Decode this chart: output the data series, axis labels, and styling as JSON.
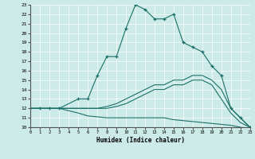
{
  "xlabel": "Humidex (Indice chaleur)",
  "bg_color": "#cceae7",
  "line_color": "#1a7068",
  "grid_color": "#ffffff",
  "xmin": 0,
  "xmax": 23,
  "ymin": 10,
  "ymax": 23,
  "curve1_x": [
    0,
    1,
    2,
    3,
    5,
    6,
    7,
    8,
    9,
    10,
    11,
    12,
    13,
    14,
    15,
    16,
    17,
    18,
    19,
    20,
    21,
    22,
    23
  ],
  "curve1_y": [
    12,
    12,
    12,
    12,
    13,
    13,
    15.5,
    17.5,
    17.5,
    20.5,
    23,
    22.5,
    21.5,
    21.5,
    22,
    19,
    18.5,
    18,
    16.5,
    15.5,
    12,
    11,
    10
  ],
  "curve2_x": [
    0,
    1,
    2,
    3,
    5,
    6,
    7,
    8,
    9,
    10,
    11,
    12,
    13,
    14,
    15,
    16,
    17,
    18,
    19,
    20,
    21,
    22,
    23
  ],
  "curve2_y": [
    12,
    12,
    12,
    12,
    12,
    12,
    12,
    12.2,
    12.5,
    13,
    13.5,
    14,
    14.5,
    14.5,
    15,
    15,
    15.5,
    15.5,
    15,
    14,
    12,
    11,
    10
  ],
  "curve3_x": [
    0,
    1,
    2,
    3,
    5,
    6,
    7,
    8,
    9,
    10,
    11,
    12,
    13,
    14,
    15,
    16,
    17,
    18,
    19,
    20,
    21,
    22,
    23
  ],
  "curve3_y": [
    12,
    12,
    12,
    12,
    12,
    12,
    12,
    12,
    12.2,
    12.5,
    13,
    13.5,
    14,
    14,
    14.5,
    14.5,
    15,
    15,
    14.5,
    13,
    11.5,
    10.5,
    10
  ],
  "curve4_x": [
    0,
    1,
    2,
    3,
    5,
    6,
    7,
    8,
    9,
    10,
    11,
    12,
    13,
    14,
    15,
    16,
    17,
    18,
    19,
    20,
    21,
    22,
    23
  ],
  "curve4_y": [
    12,
    12,
    12,
    12,
    11.5,
    11.2,
    11.1,
    11.0,
    11.0,
    11.0,
    11.0,
    11.0,
    11.0,
    11.0,
    10.8,
    10.7,
    10.6,
    10.5,
    10.4,
    10.3,
    10.2,
    10.0,
    9.8
  ]
}
